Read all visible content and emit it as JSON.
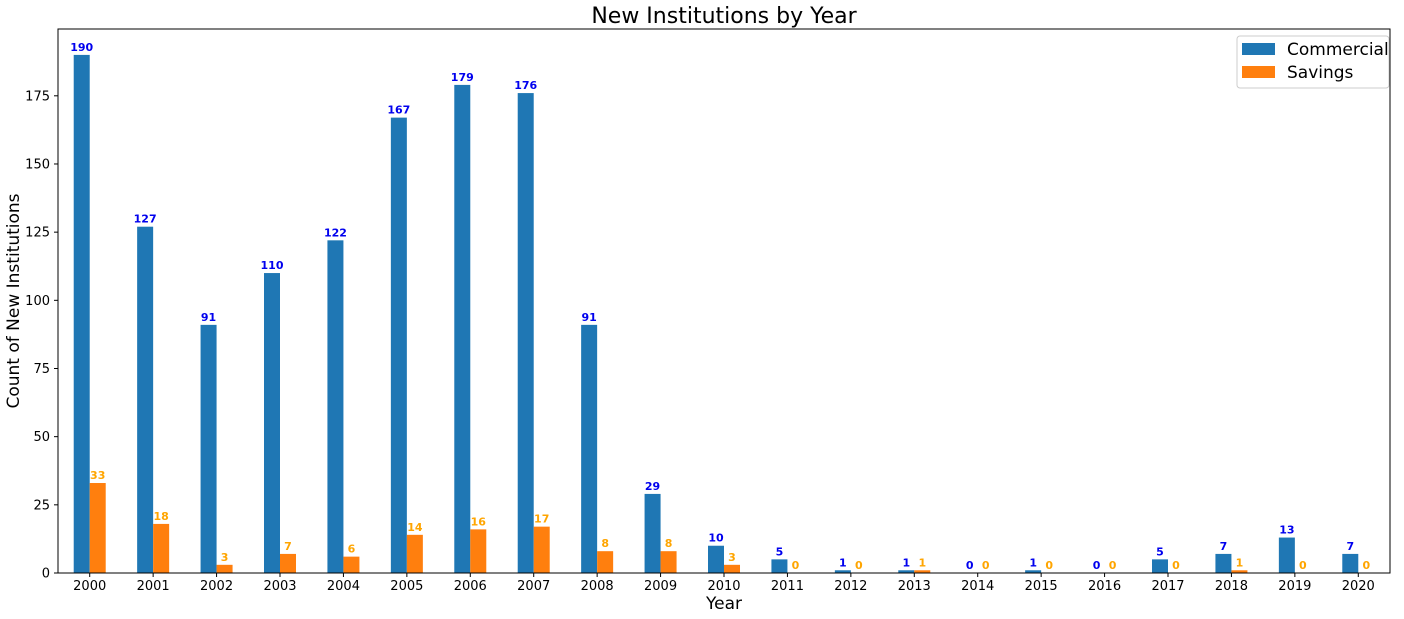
{
  "chart_data": {
    "type": "bar",
    "title": "New Institutions by Year",
    "xlabel": "Year",
    "ylabel": "Count of New Institutions",
    "categories": [
      "2000",
      "2001",
      "2002",
      "2003",
      "2004",
      "2005",
      "2006",
      "2007",
      "2008",
      "2009",
      "2010",
      "2011",
      "2012",
      "2013",
      "2014",
      "2015",
      "2016",
      "2017",
      "2018",
      "2019",
      "2020"
    ],
    "series": [
      {
        "name": "Commercial",
        "color": "#1f77b4",
        "label_color": "#0000ee",
        "values": [
          190,
          127,
          91,
          110,
          122,
          167,
          179,
          176,
          91,
          29,
          10,
          5,
          1,
          1,
          0,
          1,
          0,
          5,
          7,
          13,
          7
        ]
      },
      {
        "name": "Savings",
        "color": "#ff7f0e",
        "label_color": "#ffa500",
        "values": [
          33,
          18,
          3,
          7,
          6,
          14,
          16,
          17,
          8,
          8,
          3,
          0,
          0,
          1,
          0,
          0,
          0,
          0,
          1,
          0,
          0
        ]
      }
    ],
    "ylim": [
      0,
      199.5
    ],
    "yticks": [
      0,
      25,
      50,
      75,
      100,
      125,
      150,
      175
    ],
    "grid": false,
    "legend": "top-right"
  }
}
